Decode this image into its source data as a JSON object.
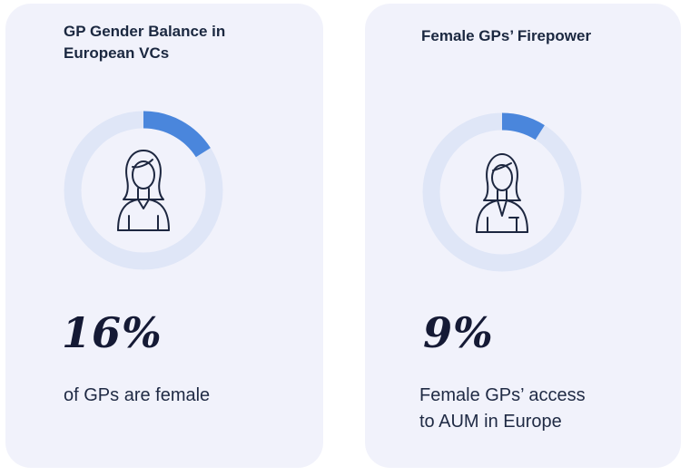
{
  "colors": {
    "card_bg": "#f1f2fb",
    "ring_track": "#dfe6f7",
    "ring_value": "#4a86dc",
    "icon_stroke": "#1d2740",
    "text": "#1b2840"
  },
  "chart_data": [
    {
      "type": "pie",
      "title": "GP Gender Balance in\nEuropean VCs",
      "value_label": "16%",
      "caption": "of GPs are female",
      "slices": [
        {
          "label": "female",
          "value": 16
        },
        {
          "label": "",
          "value": 84
        }
      ],
      "icon": "woman-avatar-icon"
    },
    {
      "type": "pie",
      "title": "Female GPs’ Firepower",
      "value_label": "9%",
      "caption": "Female GPs’ access\nto AUM in Europe",
      "slices": [
        {
          "label": "female GPs",
          "value": 9
        },
        {
          "label": "",
          "value": 91
        }
      ],
      "icon": "businesswoman-avatar-icon"
    }
  ]
}
